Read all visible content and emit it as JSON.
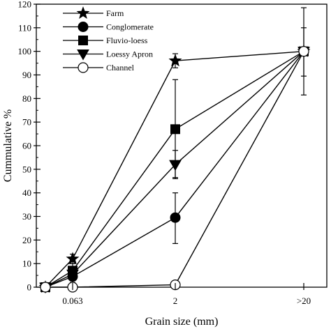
{
  "chart_data": {
    "type": "line",
    "xlabel": "Grain size (mm)",
    "ylabel": "Cummulative %",
    "categories": [
      "0.063",
      "2",
      ">20"
    ],
    "ylim": [
      0,
      120
    ],
    "yticks": [
      0,
      10,
      20,
      30,
      40,
      50,
      60,
      70,
      80,
      90,
      100,
      110,
      120
    ],
    "grid": false,
    "legend_position": "top-left",
    "series": [
      {
        "name": "Farm",
        "marker": "star",
        "fill": "#000000",
        "points": [
          {
            "x": "0",
            "y": 0
          },
          {
            "x": "0.063",
            "y": 12,
            "err_low": 10,
            "err_high": 14
          },
          {
            "x": "2",
            "y": 96,
            "err_low": 93,
            "err_high": 99
          },
          {
            "x": ">20",
            "y": 100
          }
        ]
      },
      {
        "name": "Conglomerate",
        "marker": "circle",
        "fill": "#000000",
        "points": [
          {
            "x": "0",
            "y": 0
          },
          {
            "x": "0.063",
            "y": 4.5,
            "err_low": 2,
            "err_high": 7
          },
          {
            "x": "2",
            "y": 29.5,
            "err_low": 18.5,
            "err_high": 40
          },
          {
            "x": ">20",
            "y": 100
          }
        ]
      },
      {
        "name": "Fluvio-loess",
        "marker": "square",
        "fill": "#000000",
        "points": [
          {
            "x": "0",
            "y": 0
          },
          {
            "x": "0.063",
            "y": 7,
            "err_low": 4,
            "err_high": 10
          },
          {
            "x": "2",
            "y": 67,
            "err_low": 46.5,
            "err_high": 88
          },
          {
            "x": ">20",
            "y": 100,
            "err_low": 81.5,
            "err_high": 118.5
          }
        ]
      },
      {
        "name": "Loessy Apron",
        "marker": "triangle-down",
        "fill": "#000000",
        "points": [
          {
            "x": "0",
            "y": 0
          },
          {
            "x": "0.063",
            "y": 5.5,
            "err_low": 3,
            "err_high": 8
          },
          {
            "x": "2",
            "y": 52,
            "err_low": 46,
            "err_high": 58
          },
          {
            "x": ">20",
            "y": 100,
            "err_low": 89.5,
            "err_high": 110
          }
        ]
      },
      {
        "name": "Channel",
        "marker": "circle-open",
        "fill": "#ffffff",
        "points": [
          {
            "x": "0",
            "y": 0
          },
          {
            "x": "0.063",
            "y": 0
          },
          {
            "x": "2",
            "y": 1
          },
          {
            "x": ">20",
            "y": 100
          }
        ]
      }
    ]
  }
}
